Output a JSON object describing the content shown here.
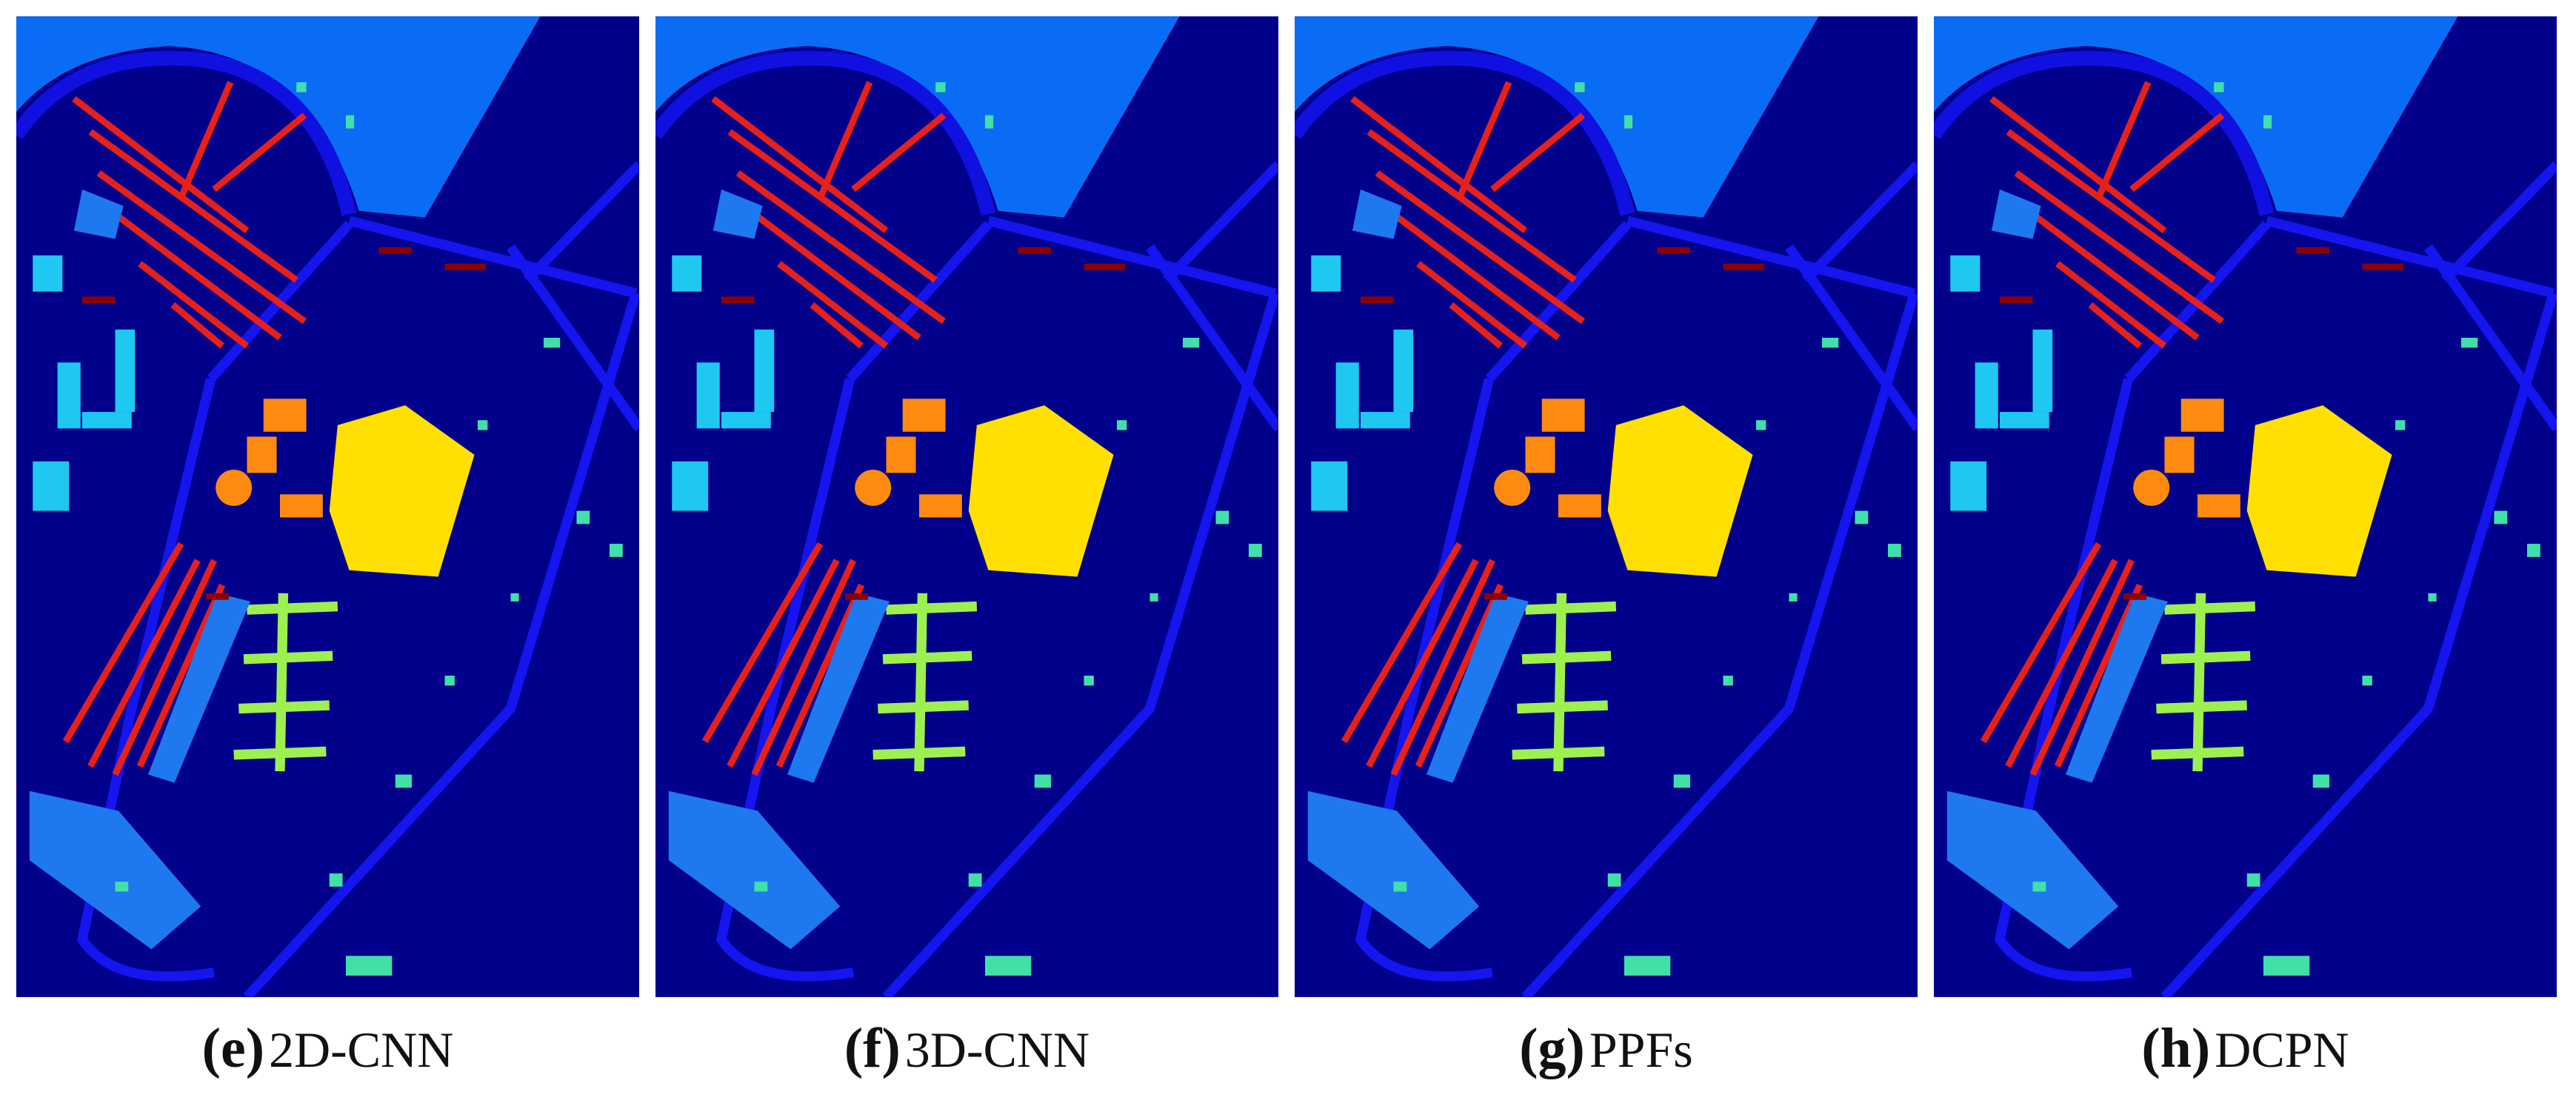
{
  "panels": [
    {
      "label": "(e)",
      "name": "2D-CNN"
    },
    {
      "label": "(f)",
      "name": "3D-CNN"
    },
    {
      "label": "(g)",
      "name": "PPFs"
    },
    {
      "label": "(h)",
      "name": "DCPN"
    }
  ]
}
